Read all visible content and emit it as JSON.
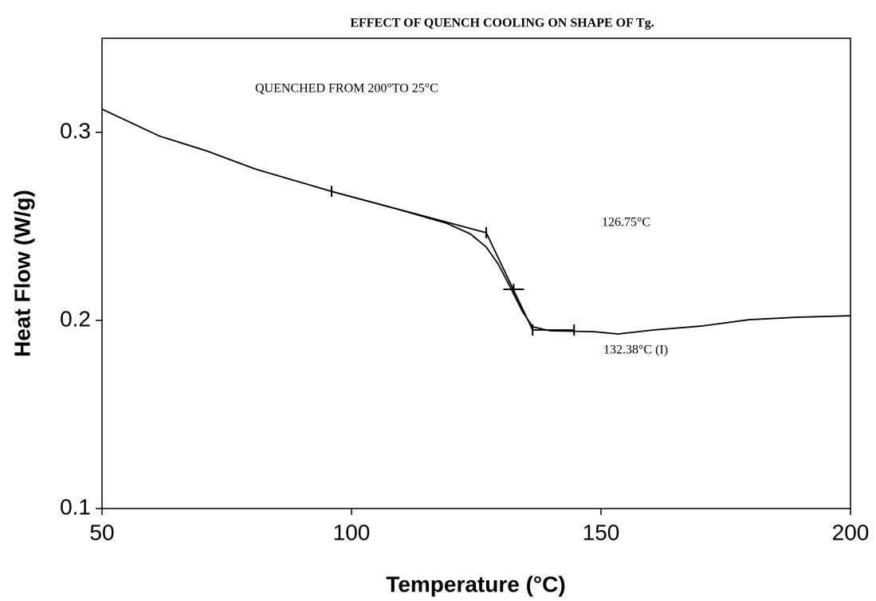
{
  "chart_data": {
    "type": "line",
    "title": "EFFECT OF QUENCH COOLING ON SHAPE OF Tg.",
    "xlabel": "Temperature (°C)",
    "ylabel": "Heat Flow (W/g)",
    "annotations": [
      "QUENCHED  FROM  200°TO  25°C",
      "126.75°C",
      "132.38°C  (I)"
    ],
    "xlim": [
      50,
      200
    ],
    "xticks": [
      50,
      100,
      150,
      200
    ],
    "ylim": [
      0.1,
      0.35
    ],
    "yticks": [
      0.1,
      0.2,
      0.3
    ],
    "color": "#000000",
    "x": [
      50,
      61.5,
      71.1,
      80.7,
      96,
      109.4,
      119,
      123.8,
      127,
      129.4,
      131.8,
      134.2,
      136.3,
      139.8,
      148.6,
      153.4,
      160.5,
      170.1,
      179.7,
      189.3,
      200
    ],
    "values": [
      0.3123,
      0.298,
      0.29,
      0.2805,
      0.2686,
      0.259,
      0.2517,
      0.246,
      0.239,
      0.23,
      0.2178,
      0.205,
      0.1966,
      0.1945,
      0.194,
      0.1928,
      0.1949,
      0.197,
      0.2004,
      0.2017,
      0.2025
    ],
    "annotation_lines": [
      {
        "x": [
          96,
          127
        ],
        "y": [
          0.2686,
          0.2466
        ]
      },
      {
        "x": [
          127,
          136.3
        ],
        "y": [
          0.2466,
          0.1949
        ]
      },
      {
        "x": [
          136.3,
          144.6
        ],
        "y": [
          0.1949,
          0.1949
        ]
      }
    ],
    "markers": {
      "x": [
        96,
        127,
        132.5,
        136.3,
        144.6
      ],
      "y": [
        0.2686,
        0.2466,
        0.2165,
        0.1949,
        0.1949
      ]
    }
  }
}
